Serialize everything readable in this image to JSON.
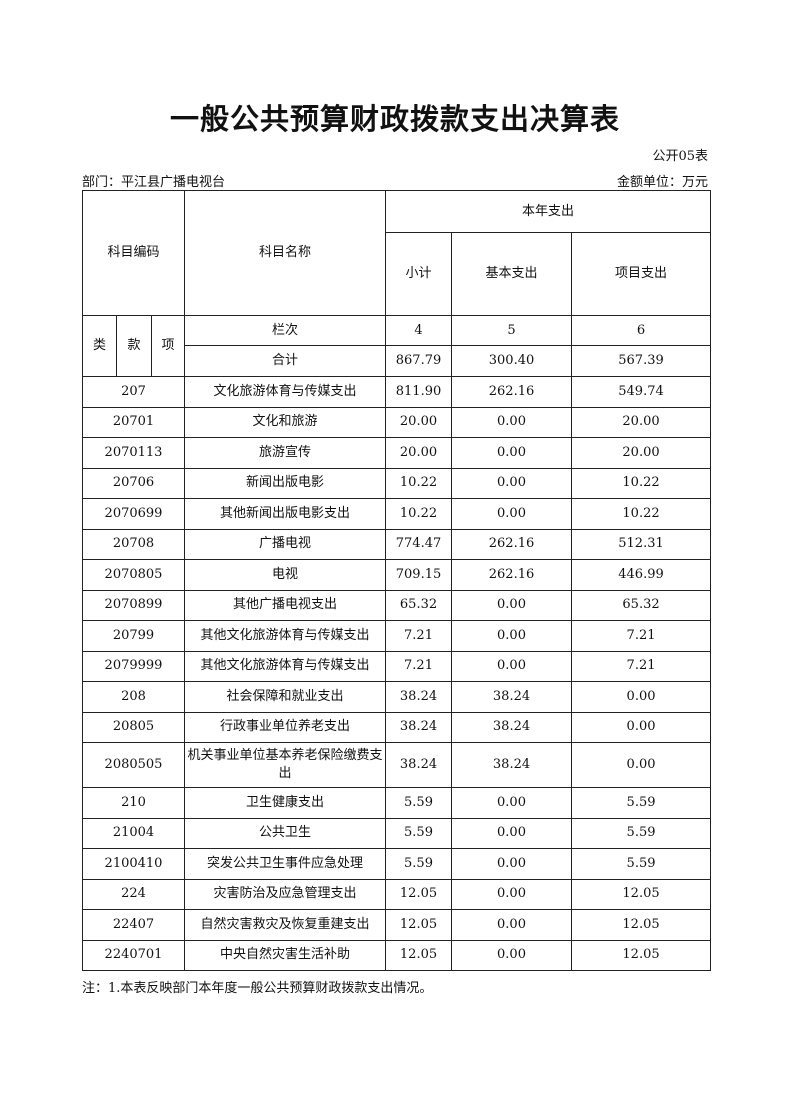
{
  "title": "一般公共预算财政拨款支出决算表",
  "form_no": "公开05表",
  "department": "部门：平江县广播电视台",
  "unit": "金额单位：万元",
  "header": {
    "code": "科目编码",
    "name": "科目名称",
    "current_year": "本年支出",
    "subtotal": "小计",
    "basic": "基本支出",
    "project": "项目支出",
    "lei": "类",
    "kuan": "款",
    "xiang": "项",
    "column_no": "栏次",
    "col4": "4",
    "col5": "5",
    "col6": "6",
    "total_label": "合计",
    "total_subtotal": "867.79",
    "total_basic": "300.40",
    "total_project": "567.39"
  },
  "rows": [
    {
      "code": "207",
      "name": "文化旅游体育与传媒支出",
      "subtotal": "811.90",
      "basic": "262.16",
      "project": "549.74"
    },
    {
      "code": "20701",
      "name": "文化和旅游",
      "subtotal": "20.00",
      "basic": "0.00",
      "project": "20.00"
    },
    {
      "code": "2070113",
      "name": "旅游宣传",
      "subtotal": "20.00",
      "basic": "0.00",
      "project": "20.00"
    },
    {
      "code": "20706",
      "name": "新闻出版电影",
      "subtotal": "10.22",
      "basic": "0.00",
      "project": "10.22"
    },
    {
      "code": "2070699",
      "name": "其他新闻出版电影支出",
      "subtotal": "10.22",
      "basic": "0.00",
      "project": "10.22"
    },
    {
      "code": "20708",
      "name": "广播电视",
      "subtotal": "774.47",
      "basic": "262.16",
      "project": "512.31"
    },
    {
      "code": "2070805",
      "name": "电视",
      "subtotal": "709.15",
      "basic": "262.16",
      "project": "446.99"
    },
    {
      "code": "2070899",
      "name": "其他广播电视支出",
      "subtotal": "65.32",
      "basic": "0.00",
      "project": "65.32"
    },
    {
      "code": "20799",
      "name": "其他文化旅游体育与传媒支出",
      "subtotal": "7.21",
      "basic": "0.00",
      "project": "7.21"
    },
    {
      "code": "2079999",
      "name": "其他文化旅游体育与传媒支出",
      "subtotal": "7.21",
      "basic": "0.00",
      "project": "7.21"
    },
    {
      "code": "208",
      "name": "社会保障和就业支出",
      "subtotal": "38.24",
      "basic": "38.24",
      "project": "0.00"
    },
    {
      "code": "20805",
      "name": "行政事业单位养老支出",
      "subtotal": "38.24",
      "basic": "38.24",
      "project": "0.00"
    },
    {
      "code": "2080505",
      "name": "机关事业单位基本养老保险缴费支出",
      "subtotal": "38.24",
      "basic": "38.24",
      "project": "0.00"
    },
    {
      "code": "210",
      "name": "卫生健康支出",
      "subtotal": "5.59",
      "basic": "0.00",
      "project": "5.59"
    },
    {
      "code": "21004",
      "name": "公共卫生",
      "subtotal": "5.59",
      "basic": "0.00",
      "project": "5.59"
    },
    {
      "code": "2100410",
      "name": "突发公共卫生事件应急处理",
      "subtotal": "5.59",
      "basic": "0.00",
      "project": "5.59"
    },
    {
      "code": "224",
      "name": "灾害防治及应急管理支出",
      "subtotal": "12.05",
      "basic": "0.00",
      "project": "12.05"
    },
    {
      "code": "22407",
      "name": "自然灾害救灾及恢复重建支出",
      "subtotal": "12.05",
      "basic": "0.00",
      "project": "12.05"
    },
    {
      "code": "2240701",
      "name": "中央自然灾害生活补助",
      "subtotal": "12.05",
      "basic": "0.00",
      "project": "12.05"
    }
  ],
  "note": "注：1.本表反映部门本年度一般公共预算财政拨款支出情况。"
}
